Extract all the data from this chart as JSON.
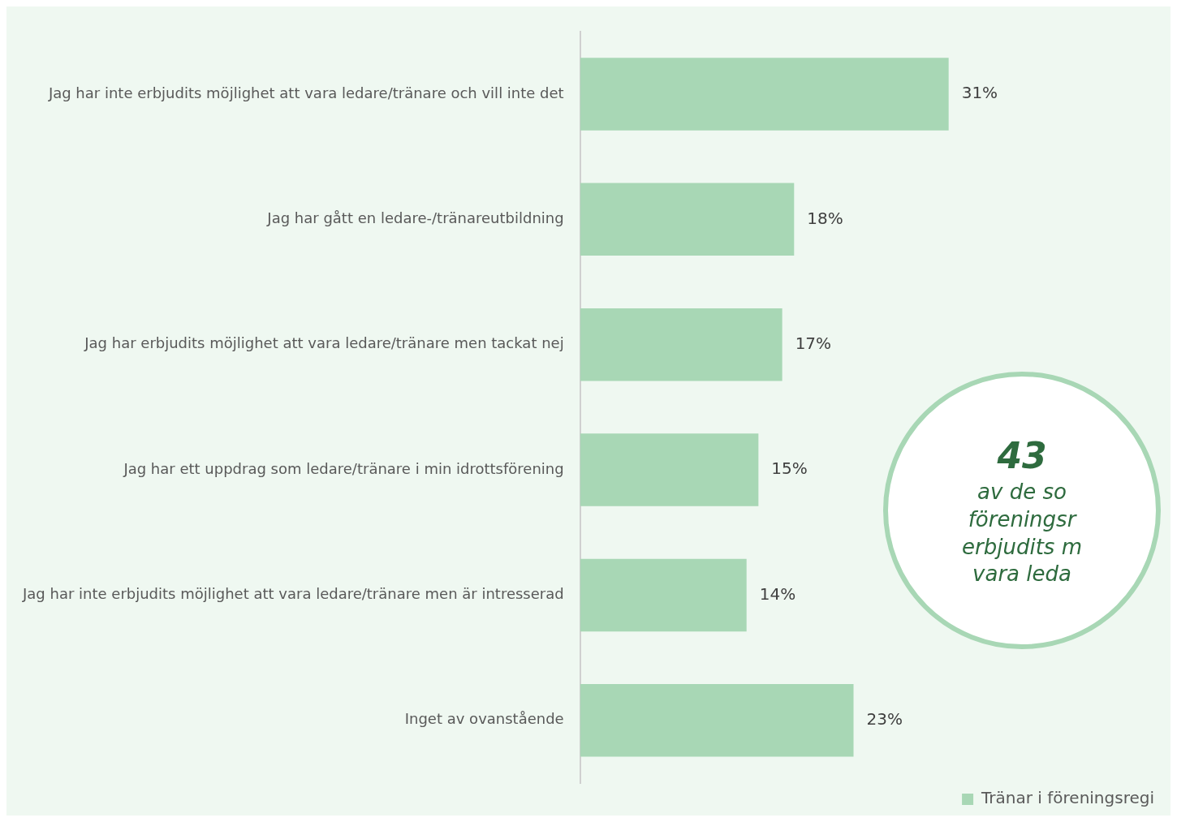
{
  "chart_data": {
    "type": "bar",
    "orientation": "horizontal",
    "categories": [
      "Jag har inte erbjudits möjlighet att vara ledare/tränare och vill inte det",
      "Jag har gått en ledare-/tränareutbildning",
      "Jag har erbjudits möjlighet att vara ledare/tränare men tackat nej",
      "Jag har ett uppdrag som ledare/tränare i min idrottsförening",
      "Jag har inte erbjudits möjlighet att vara ledare/tränare men är intresserad",
      "Inget av ovanstående"
    ],
    "series": [
      {
        "name": "Tränar i föreningsregi",
        "color": "#a8d7b5",
        "values": [
          31,
          18,
          17,
          15,
          14,
          23
        ],
        "value_labels": [
          "31%",
          "18%",
          "17%",
          "15%",
          "14%",
          "23%"
        ]
      }
    ],
    "legend": "bottom right",
    "annotations": [
      "43",
      "av de so",
      "föreningsr",
      "erbjudits m",
      "vara leda"
    ]
  }
}
